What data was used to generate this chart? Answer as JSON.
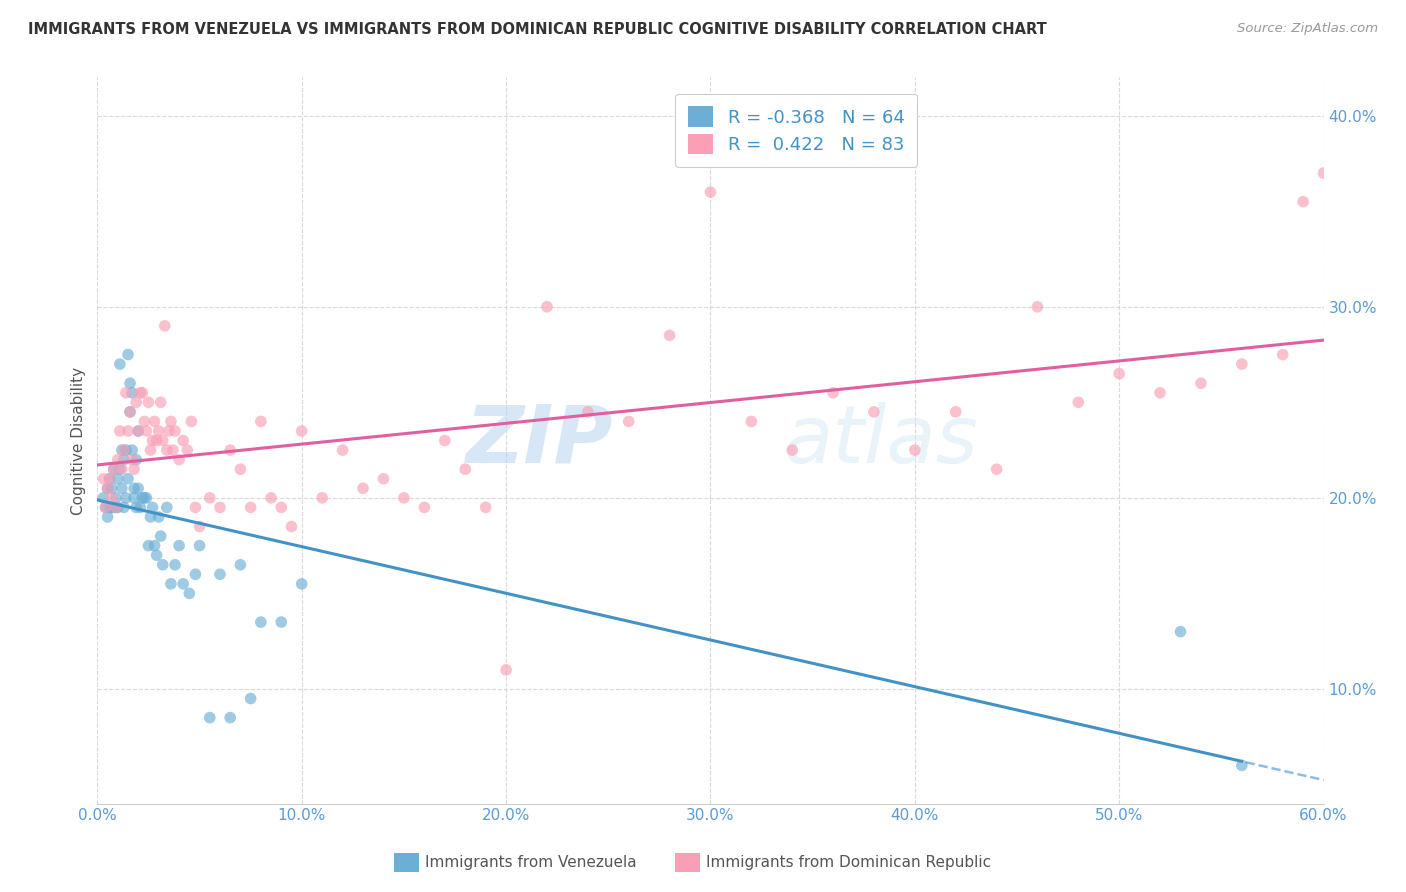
{
  "title": "IMMIGRANTS FROM VENEZUELA VS IMMIGRANTS FROM DOMINICAN REPUBLIC COGNITIVE DISABILITY CORRELATION CHART",
  "source": "Source: ZipAtlas.com",
  "xlabel_blue": "Immigrants from Venezuela",
  "xlabel_pink": "Immigrants from Dominican Republic",
  "ylabel": "Cognitive Disability",
  "legend_blue_R": "-0.368",
  "legend_blue_N": "64",
  "legend_pink_R": "0.422",
  "legend_pink_N": "83",
  "xlim": [
    0.0,
    0.6
  ],
  "ylim": [
    0.04,
    0.42
  ],
  "xticks": [
    0.0,
    0.1,
    0.2,
    0.3,
    0.4,
    0.5,
    0.6
  ],
  "yticks": [
    0.1,
    0.2,
    0.3,
    0.4
  ],
  "blue_color": "#6baed6",
  "pink_color": "#fa9fb5",
  "blue_line_color": "#4292c6",
  "pink_line_color": "#e05fa0",
  "watermark_zip": "ZIP",
  "watermark_atlas": "atlas",
  "blue_scatter_x": [
    0.003,
    0.004,
    0.005,
    0.005,
    0.006,
    0.006,
    0.007,
    0.007,
    0.008,
    0.008,
    0.009,
    0.009,
    0.01,
    0.01,
    0.011,
    0.011,
    0.012,
    0.012,
    0.013,
    0.013,
    0.014,
    0.014,
    0.015,
    0.015,
    0.016,
    0.016,
    0.017,
    0.017,
    0.018,
    0.018,
    0.019,
    0.019,
    0.02,
    0.02,
    0.021,
    0.022,
    0.023,
    0.024,
    0.025,
    0.026,
    0.027,
    0.028,
    0.029,
    0.03,
    0.031,
    0.032,
    0.034,
    0.036,
    0.038,
    0.04,
    0.042,
    0.045,
    0.048,
    0.05,
    0.055,
    0.06,
    0.065,
    0.07,
    0.075,
    0.08,
    0.09,
    0.1,
    0.53,
    0.56
  ],
  "blue_scatter_y": [
    0.2,
    0.195,
    0.19,
    0.205,
    0.195,
    0.21,
    0.195,
    0.205,
    0.195,
    0.215,
    0.2,
    0.195,
    0.21,
    0.195,
    0.27,
    0.215,
    0.225,
    0.205,
    0.195,
    0.22,
    0.225,
    0.2,
    0.275,
    0.21,
    0.26,
    0.245,
    0.225,
    0.255,
    0.2,
    0.205,
    0.195,
    0.22,
    0.235,
    0.205,
    0.195,
    0.2,
    0.2,
    0.2,
    0.175,
    0.19,
    0.195,
    0.175,
    0.17,
    0.19,
    0.18,
    0.165,
    0.195,
    0.155,
    0.165,
    0.175,
    0.155,
    0.15,
    0.16,
    0.175,
    0.085,
    0.16,
    0.085,
    0.165,
    0.095,
    0.135,
    0.135,
    0.155,
    0.13,
    0.06
  ],
  "pink_scatter_x": [
    0.003,
    0.004,
    0.005,
    0.006,
    0.007,
    0.008,
    0.009,
    0.01,
    0.011,
    0.012,
    0.013,
    0.014,
    0.015,
    0.016,
    0.017,
    0.018,
    0.019,
    0.02,
    0.021,
    0.022,
    0.023,
    0.024,
    0.025,
    0.026,
    0.027,
    0.028,
    0.029,
    0.03,
    0.031,
    0.032,
    0.033,
    0.034,
    0.035,
    0.036,
    0.037,
    0.038,
    0.04,
    0.042,
    0.044,
    0.046,
    0.048,
    0.05,
    0.055,
    0.06,
    0.065,
    0.07,
    0.075,
    0.08,
    0.085,
    0.09,
    0.095,
    0.1,
    0.11,
    0.12,
    0.13,
    0.14,
    0.15,
    0.16,
    0.17,
    0.18,
    0.19,
    0.2,
    0.22,
    0.24,
    0.26,
    0.28,
    0.3,
    0.32,
    0.34,
    0.36,
    0.38,
    0.4,
    0.42,
    0.44,
    0.46,
    0.48,
    0.5,
    0.52,
    0.54,
    0.56,
    0.58,
    0.59,
    0.6
  ],
  "pink_scatter_y": [
    0.21,
    0.195,
    0.205,
    0.21,
    0.2,
    0.215,
    0.195,
    0.22,
    0.235,
    0.215,
    0.225,
    0.255,
    0.235,
    0.245,
    0.22,
    0.215,
    0.25,
    0.235,
    0.255,
    0.255,
    0.24,
    0.235,
    0.25,
    0.225,
    0.23,
    0.24,
    0.23,
    0.235,
    0.25,
    0.23,
    0.29,
    0.225,
    0.235,
    0.24,
    0.225,
    0.235,
    0.22,
    0.23,
    0.225,
    0.24,
    0.195,
    0.185,
    0.2,
    0.195,
    0.225,
    0.215,
    0.195,
    0.24,
    0.2,
    0.195,
    0.185,
    0.235,
    0.2,
    0.225,
    0.205,
    0.21,
    0.2,
    0.195,
    0.23,
    0.215,
    0.195,
    0.11,
    0.3,
    0.245,
    0.24,
    0.285,
    0.36,
    0.24,
    0.225,
    0.255,
    0.245,
    0.225,
    0.245,
    0.215,
    0.3,
    0.25,
    0.265,
    0.255,
    0.26,
    0.27,
    0.275,
    0.355,
    0.37
  ]
}
